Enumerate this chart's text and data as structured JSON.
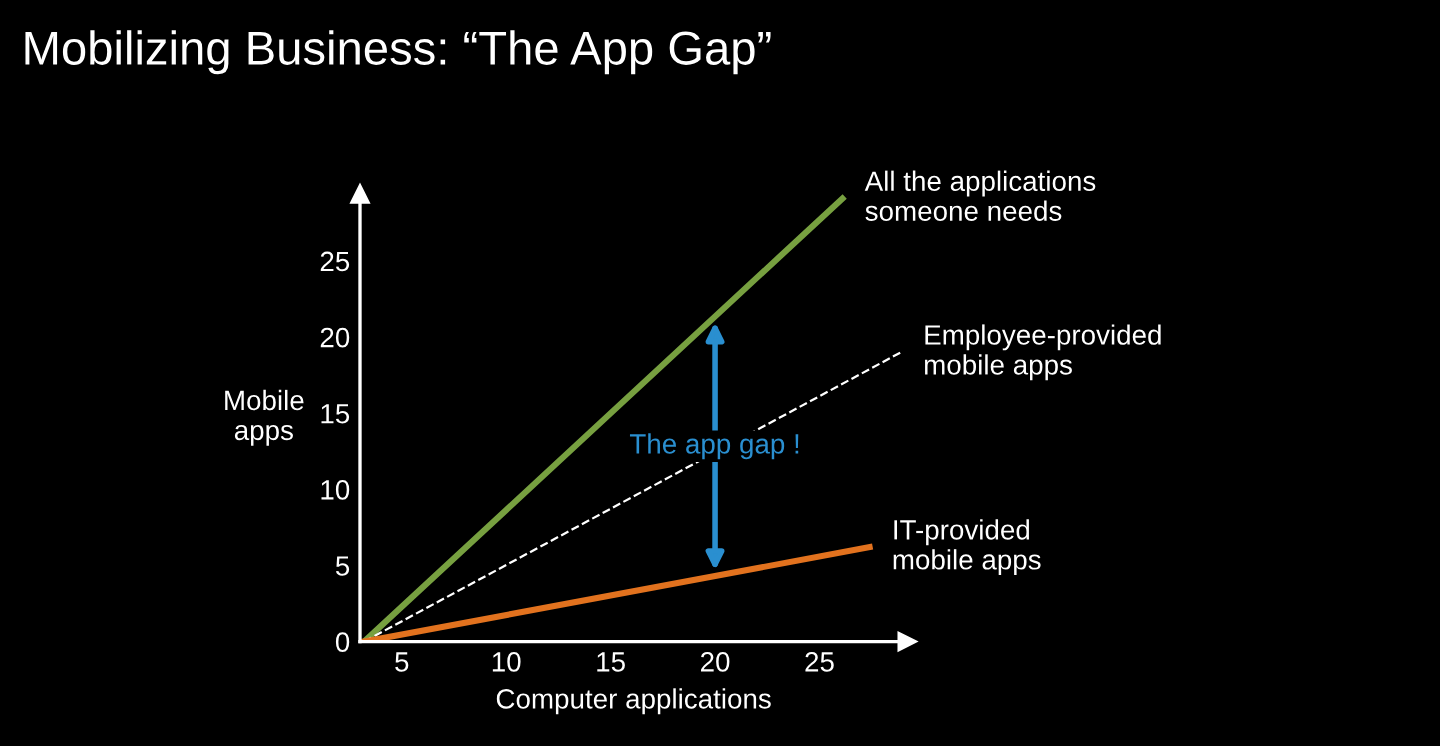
{
  "chart_data": {
    "type": "line",
    "title": "Mobilizing Business: “The App Gap”",
    "xlabel": "Computer applications",
    "ylabel": "Mobile\napps",
    "series": [
      {
        "name": "All the applications\nsomeone needs",
        "color": "#77a040",
        "x": [
          3.2,
          26.1
        ],
        "values": [
          0,
          29.1
        ]
      },
      {
        "name": "Employee-provided\nmobile apps",
        "color": "#ffffff",
        "line_style": "dashed",
        "x": [
          3.2,
          28.9
        ],
        "values": [
          0,
          19
        ]
      },
      {
        "name": "IT-provided\nmobile apps",
        "color": "#e2721e",
        "x": [
          3.2,
          27.4
        ],
        "values": [
          0,
          6.2
        ]
      }
    ],
    "annotations": [
      {
        "text": "The app gap !",
        "x": 20
      }
    ],
    "xlim": [
      3,
      29.2
    ],
    "ylim": [
      0,
      29.4
    ],
    "xticks": [
      5,
      10,
      15,
      20,
      25
    ],
    "yticks": [
      0,
      5,
      10,
      15,
      20,
      25
    ],
    "grid": false,
    "legend": false,
    "marker": "none"
  }
}
